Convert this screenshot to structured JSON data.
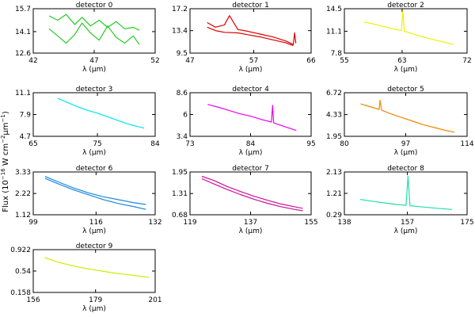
{
  "figure": {
    "ylabel": "Flux (10$^{-16}$ W cm$^{-2}$μm$^{-1}$)",
    "ylabel_parts": {
      "prefix": "Flux (10",
      "exp1": "−16",
      "mid": " W cm",
      "exp2": "−2",
      "unit": "μm",
      "exp3": "−1",
      "suffix": ")"
    }
  },
  "chart_data": [
    {
      "type": "line",
      "title": "detector 0",
      "xlabel": "λ (μm)",
      "color": "#22cc22",
      "xticks": [
        42,
        47,
        52
      ],
      "yticks": [
        12.6,
        14.1,
        15.7
      ],
      "xlim": [
        42,
        52
      ],
      "ylim": [
        12.6,
        15.7
      ],
      "series": [
        {
          "x": [
            43.3,
            44.0,
            44.7,
            45.4,
            46.0,
            46.7,
            47.4,
            48.1,
            48.8,
            49.5,
            50.2,
            50.7
          ],
          "y": [
            14.3,
            13.8,
            13.3,
            13.9,
            14.7,
            14.0,
            13.5,
            14.5,
            13.7,
            13.3,
            13.8,
            13.2
          ]
        },
        {
          "x": [
            43.3,
            44.0,
            44.7,
            45.4,
            46.0,
            46.7,
            47.4,
            48.1,
            48.8,
            49.5,
            50.2,
            50.7
          ],
          "y": [
            15.2,
            14.9,
            15.3,
            14.6,
            15.1,
            14.5,
            14.9,
            14.4,
            14.8,
            14.3,
            14.4,
            14.2
          ]
        }
      ]
    },
    {
      "type": "line",
      "title": "detector 1",
      "xlabel": "λ (μm)",
      "color": "#dd0000",
      "xticks": [
        47,
        57,
        66
      ],
      "yticks": [
        9.5,
        13.4,
        17.2
      ],
      "xlim": [
        47,
        66
      ],
      "ylim": [
        9.5,
        17.2
      ],
      "series": [
        {
          "x": [
            49.7,
            51,
            52.4,
            53.2,
            54.5,
            56,
            58,
            60,
            62,
            63.2,
            63.4,
            63.6
          ],
          "y": [
            14.8,
            14.0,
            14.4,
            16.0,
            13.6,
            13.3,
            12.8,
            12.3,
            11.6,
            11.0,
            13.0,
            11.2
          ]
        },
        {
          "x": [
            49.7,
            51,
            52.4,
            54.5,
            56,
            58,
            60,
            62,
            63.2
          ],
          "y": [
            14.0,
            13.4,
            13.1,
            13.0,
            12.7,
            12.3,
            11.8,
            11.3,
            10.8
          ]
        }
      ]
    },
    {
      "type": "line",
      "title": "detector 2",
      "xlabel": "λ (μm)",
      "color": "#eeee00",
      "xticks": [
        55,
        63,
        72
      ],
      "yticks": [
        7.8,
        11.1,
        14.5
      ],
      "xlim": [
        55,
        72
      ],
      "ylim": [
        7.8,
        14.5
      ],
      "series": [
        {
          "x": [
            57.7,
            59,
            60.5,
            62,
            62.9,
            63.1,
            63.3,
            64.5,
            66,
            67.5,
            69,
            70.1
          ],
          "y": [
            12.5,
            12.2,
            11.8,
            11.4,
            11.2,
            14.2,
            11.1,
            10.7,
            10.2,
            9.8,
            9.4,
            9.1
          ]
        }
      ]
    },
    {
      "type": "line",
      "title": "detector 3",
      "xlabel": "λ (μm)",
      "color": "#00e5ee",
      "xticks": [
        65,
        75,
        84
      ],
      "yticks": [
        4.7,
        7.9,
        11.1
      ],
      "xlim": [
        65,
        84
      ],
      "ylim": [
        4.7,
        11.1
      ],
      "series": [
        {
          "x": [
            68.8,
            70.5,
            72,
            73.5,
            75,
            76.5,
            78,
            79.5,
            81,
            82.3
          ],
          "y": [
            10.3,
            9.6,
            9.0,
            8.5,
            8.1,
            7.6,
            7.1,
            6.6,
            6.2,
            5.9
          ]
        }
      ]
    },
    {
      "type": "line",
      "title": "detector 4",
      "xlabel": "λ (μm)",
      "color": "#ee00ee",
      "xticks": [
        73,
        84,
        95
      ],
      "yticks": [
        3.4,
        6.0,
        8.6
      ],
      "xlim": [
        73,
        95
      ],
      "ylim": [
        3.4,
        8.6
      ],
      "series": [
        {
          "x": [
            76.2,
            78,
            80,
            82,
            84,
            86,
            87.8,
            88.0,
            88.2,
            90,
            92.3
          ],
          "y": [
            7.2,
            6.9,
            6.5,
            6.1,
            5.8,
            5.4,
            5.1,
            7.1,
            5.0,
            4.6,
            4.1
          ]
        }
      ]
    },
    {
      "type": "line",
      "title": "detector 5",
      "xlabel": "λ (μm)",
      "color": "#ee8800",
      "xticks": [
        80,
        97,
        114
      ],
      "yticks": [
        1.95,
        4.33,
        6.72
      ],
      "xlim": [
        80,
        114
      ],
      "ylim": [
        1.95,
        6.72
      ],
      "series": [
        {
          "x": [
            84.5,
            87,
            89.6,
            89.9,
            90.3,
            93,
            96,
            99,
            102,
            105,
            108,
            110.5
          ],
          "y": [
            5.5,
            5.2,
            4.9,
            5.9,
            4.8,
            4.4,
            4.0,
            3.6,
            3.2,
            2.9,
            2.6,
            2.4
          ]
        }
      ]
    },
    {
      "type": "line",
      "title": "detector 6",
      "xlabel": "λ (μm)",
      "color": "#1e88dd",
      "xticks": [
        99,
        116,
        132
      ],
      "yticks": [
        1.12,
        2.22,
        3.33
      ],
      "xlim": [
        99,
        132
      ],
      "ylim": [
        1.12,
        3.33
      ],
      "series": [
        {
          "x": [
            102.2,
            106,
            110,
            114,
            118,
            122,
            126,
            129.5
          ],
          "y": [
            3.1,
            2.8,
            2.5,
            2.25,
            2.05,
            1.9,
            1.75,
            1.65
          ]
        },
        {
          "x": [
            102.2,
            106,
            110,
            114,
            118,
            122,
            126,
            129.5
          ],
          "y": [
            3.0,
            2.7,
            2.4,
            2.15,
            1.9,
            1.7,
            1.55,
            1.4
          ]
        }
      ]
    },
    {
      "type": "line",
      "title": "detector 7",
      "xlabel": "λ (μm)",
      "color": "#cc1199",
      "xticks": [
        119,
        137,
        155
      ],
      "yticks": [
        0.68,
        1.31,
        1.95
      ],
      "xlim": [
        119,
        155
      ],
      "ylim": [
        0.68,
        1.95
      ],
      "series": [
        {
          "x": [
            122.5,
            126,
            130,
            134,
            138,
            142,
            146,
            150,
            152.5
          ],
          "y": [
            1.82,
            1.7,
            1.52,
            1.37,
            1.23,
            1.11,
            1.0,
            0.92,
            0.87
          ]
        },
        {
          "x": [
            122.5,
            126,
            130,
            134,
            138,
            142,
            146,
            150,
            152.5
          ],
          "y": [
            1.75,
            1.6,
            1.43,
            1.28,
            1.14,
            1.02,
            0.92,
            0.84,
            0.8
          ]
        }
      ]
    },
    {
      "type": "line",
      "title": "detector 8",
      "xlabel": "λ (μm)",
      "color": "#22ddaa",
      "xticks": [
        138,
        157,
        175
      ],
      "yticks": [
        0.29,
        1.21,
        2.13
      ],
      "xlim": [
        138,
        175
      ],
      "ylim": [
        0.29,
        2.13
      ],
      "series": [
        {
          "x": [
            142.8,
            146,
            150,
            154,
            156.6,
            157.2,
            157.8,
            162,
            166,
            170.5
          ],
          "y": [
            0.95,
            0.88,
            0.8,
            0.73,
            0.7,
            1.95,
            0.68,
            0.62,
            0.57,
            0.52
          ]
        }
      ]
    },
    {
      "type": "line",
      "title": "detector 9",
      "xlabel": "λ (μm)",
      "color": "#ccee00",
      "xticks": [
        156,
        179,
        201
      ],
      "yticks": [
        0.158,
        0.54,
        0.922
      ],
      "xlim": [
        156,
        201
      ],
      "ylim": [
        0.158,
        0.922
      ],
      "series": [
        {
          "x": [
            160.2,
            165,
            170,
            175,
            180,
            185,
            190,
            195,
            198.8
          ],
          "y": [
            0.78,
            0.7,
            0.64,
            0.59,
            0.55,
            0.51,
            0.48,
            0.45,
            0.43
          ]
        }
      ]
    }
  ]
}
